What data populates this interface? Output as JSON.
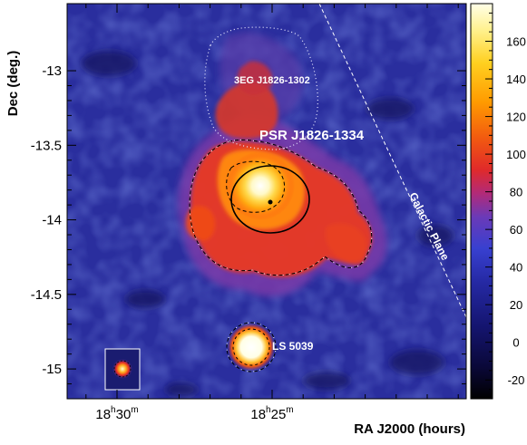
{
  "chart_data": {
    "type": "heatmap",
    "title": "",
    "xlabel": "RA J2000 (hours)",
    "ylabel": "Dec (deg.)",
    "x_ticks": [
      {
        "h": 18,
        "m": 30,
        "label": "18h30m"
      },
      {
        "h": 18,
        "m": 25,
        "label": "18h25m"
      }
    ],
    "y_ticks": [
      -13,
      -13.5,
      -14,
      -14.5,
      -15
    ],
    "y_tick_labels": [
      "-13",
      "-13.5",
      "-14",
      "-14.5",
      "-15"
    ],
    "ylim": [
      -15.2,
      -12.55
    ],
    "colorbar": {
      "min": -30,
      "max": 180,
      "ticks": [
        -20,
        0,
        20,
        40,
        60,
        80,
        100,
        120,
        140,
        160
      ],
      "tick_labels": [
        "-20",
        "0",
        "20",
        "40",
        "60",
        "80",
        "100",
        "120",
        "140",
        "160"
      ]
    },
    "annotations": [
      {
        "label": "3EG J1826-1302",
        "type": "error-ellipse-dotted"
      },
      {
        "label": "PSR J1826-1334",
        "type": "pulsar"
      },
      {
        "label": "LS 5039",
        "type": "point-source"
      },
      {
        "label": "Galactic Plane",
        "type": "dashed-line"
      }
    ],
    "psf_inset": true
  }
}
